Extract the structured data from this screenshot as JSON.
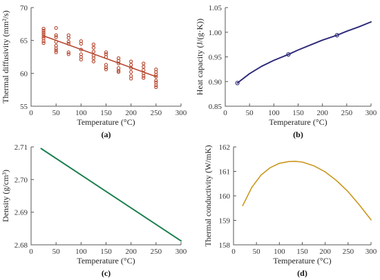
{
  "chart_data": [
    {
      "panel": "(a)",
      "type": "scatter",
      "xlabel": "Temperature (°C)",
      "ylabel": "Thermal diffusivity (mm²/s)",
      "xlim": [
        0,
        300
      ],
      "ylim": [
        55,
        70
      ],
      "xticks": [
        0,
        50,
        100,
        150,
        200,
        250,
        300
      ],
      "yticks": [
        55,
        60,
        65,
        70
      ],
      "grid": false,
      "series": [
        {
          "kind": "points",
          "color": "#b5442b",
          "x": [
            25,
            25,
            25,
            25,
            25,
            25,
            25,
            25,
            50,
            50,
            50,
            50,
            50,
            50,
            50,
            50,
            75,
            75,
            75,
            75,
            75,
            75,
            100,
            100,
            100,
            100,
            100,
            100,
            125,
            125,
            125,
            125,
            125,
            125,
            150,
            150,
            150,
            150,
            150,
            150,
            175,
            175,
            175,
            175,
            175,
            175,
            200,
            200,
            200,
            200,
            200,
            200,
            225,
            225,
            225,
            225,
            225,
            225,
            250,
            250,
            250,
            250,
            250,
            250,
            250,
            250
          ],
          "y": [
            66.8,
            66.5,
            66.2,
            65.9,
            65.6,
            65.3,
            64.9,
            64.6,
            66.9,
            65.8,
            65.5,
            64.8,
            64.2,
            63.8,
            63.5,
            63.2,
            65.8,
            65.4,
            64.8,
            64.5,
            63.2,
            62.9,
            64.9,
            64.5,
            63.6,
            62.9,
            62.5,
            62.1,
            64.4,
            63.9,
            63.3,
            62.7,
            62.3,
            61.8,
            63.2,
            62.9,
            62.5,
            61.3,
            60.9,
            60.6,
            62.3,
            61.9,
            61.5,
            60.8,
            60.4,
            60.2,
            61.8,
            61.3,
            60.8,
            60.2,
            59.6,
            59.2,
            61.5,
            61.0,
            60.5,
            60.0,
            59.6,
            59.3,
            60.6,
            60.2,
            59.8,
            59.5,
            58.9,
            58.6,
            58.2,
            57.9
          ]
        },
        {
          "kind": "fit",
          "color": "#b5442b",
          "x": [
            25,
            250
          ],
          "y": [
            65.7,
            59.5
          ]
        }
      ]
    },
    {
      "panel": "(b)",
      "type": "line",
      "xlabel": "Temperature (°C)",
      "ylabel": "Heat capacity (J/(g·K))",
      "xlim": [
        0,
        300
      ],
      "ylim": [
        0.85,
        1.05
      ],
      "xticks": [
        0,
        50,
        100,
        150,
        200,
        250,
        300
      ],
      "yticks": [
        0.85,
        0.9,
        0.95,
        1.0,
        1.05
      ],
      "grid": false,
      "series": [
        {
          "kind": "curve",
          "color": "#2e2a7a",
          "x": [
            25,
            50,
            75,
            100,
            130,
            150,
            175,
            200,
            230,
            250,
            275,
            300
          ],
          "y": [
            0.897,
            0.916,
            0.931,
            0.943,
            0.955,
            0.964,
            0.974,
            0.984,
            0.994,
            1.002,
            1.011,
            1.021
          ]
        },
        {
          "kind": "points",
          "color": "#2e2a7a",
          "x": [
            25,
            130,
            230
          ],
          "y": [
            0.897,
            0.955,
            0.994
          ]
        }
      ]
    },
    {
      "panel": "(c)",
      "type": "line",
      "xlabel": "Temperature (°C)",
      "ylabel": "Density (g/cm³)",
      "xlim": [
        0,
        300
      ],
      "ylim": [
        2.68,
        2.71
      ],
      "xticks": [
        0,
        50,
        100,
        150,
        200,
        250,
        300
      ],
      "yticks": [
        2.68,
        2.69,
        2.7,
        2.71
      ],
      "grid": false,
      "series": [
        {
          "kind": "curve",
          "color": "#1c7f4e",
          "x": [
            20,
            300
          ],
          "y": [
            2.7095,
            2.6812
          ]
        }
      ]
    },
    {
      "panel": "(d)",
      "type": "line",
      "xlabel": "Temperature (°C)",
      "ylabel": "Thermal conductivity (W/mK)",
      "xlim": [
        0,
        300
      ],
      "ylim": [
        158,
        162
      ],
      "xticks": [
        0,
        50,
        100,
        150,
        200,
        250,
        300
      ],
      "yticks": [
        158,
        159,
        160,
        161,
        162
      ],
      "grid": false,
      "series": [
        {
          "kind": "curve",
          "color": "#c9961a",
          "x": [
            20,
            40,
            60,
            80,
            100,
            120,
            135,
            150,
            175,
            200,
            225,
            250,
            275,
            300
          ],
          "y": [
            159.6,
            160.35,
            160.85,
            161.15,
            161.33,
            161.4,
            161.41,
            161.38,
            161.23,
            160.98,
            160.62,
            160.17,
            159.62,
            159.02
          ]
        }
      ]
    }
  ]
}
